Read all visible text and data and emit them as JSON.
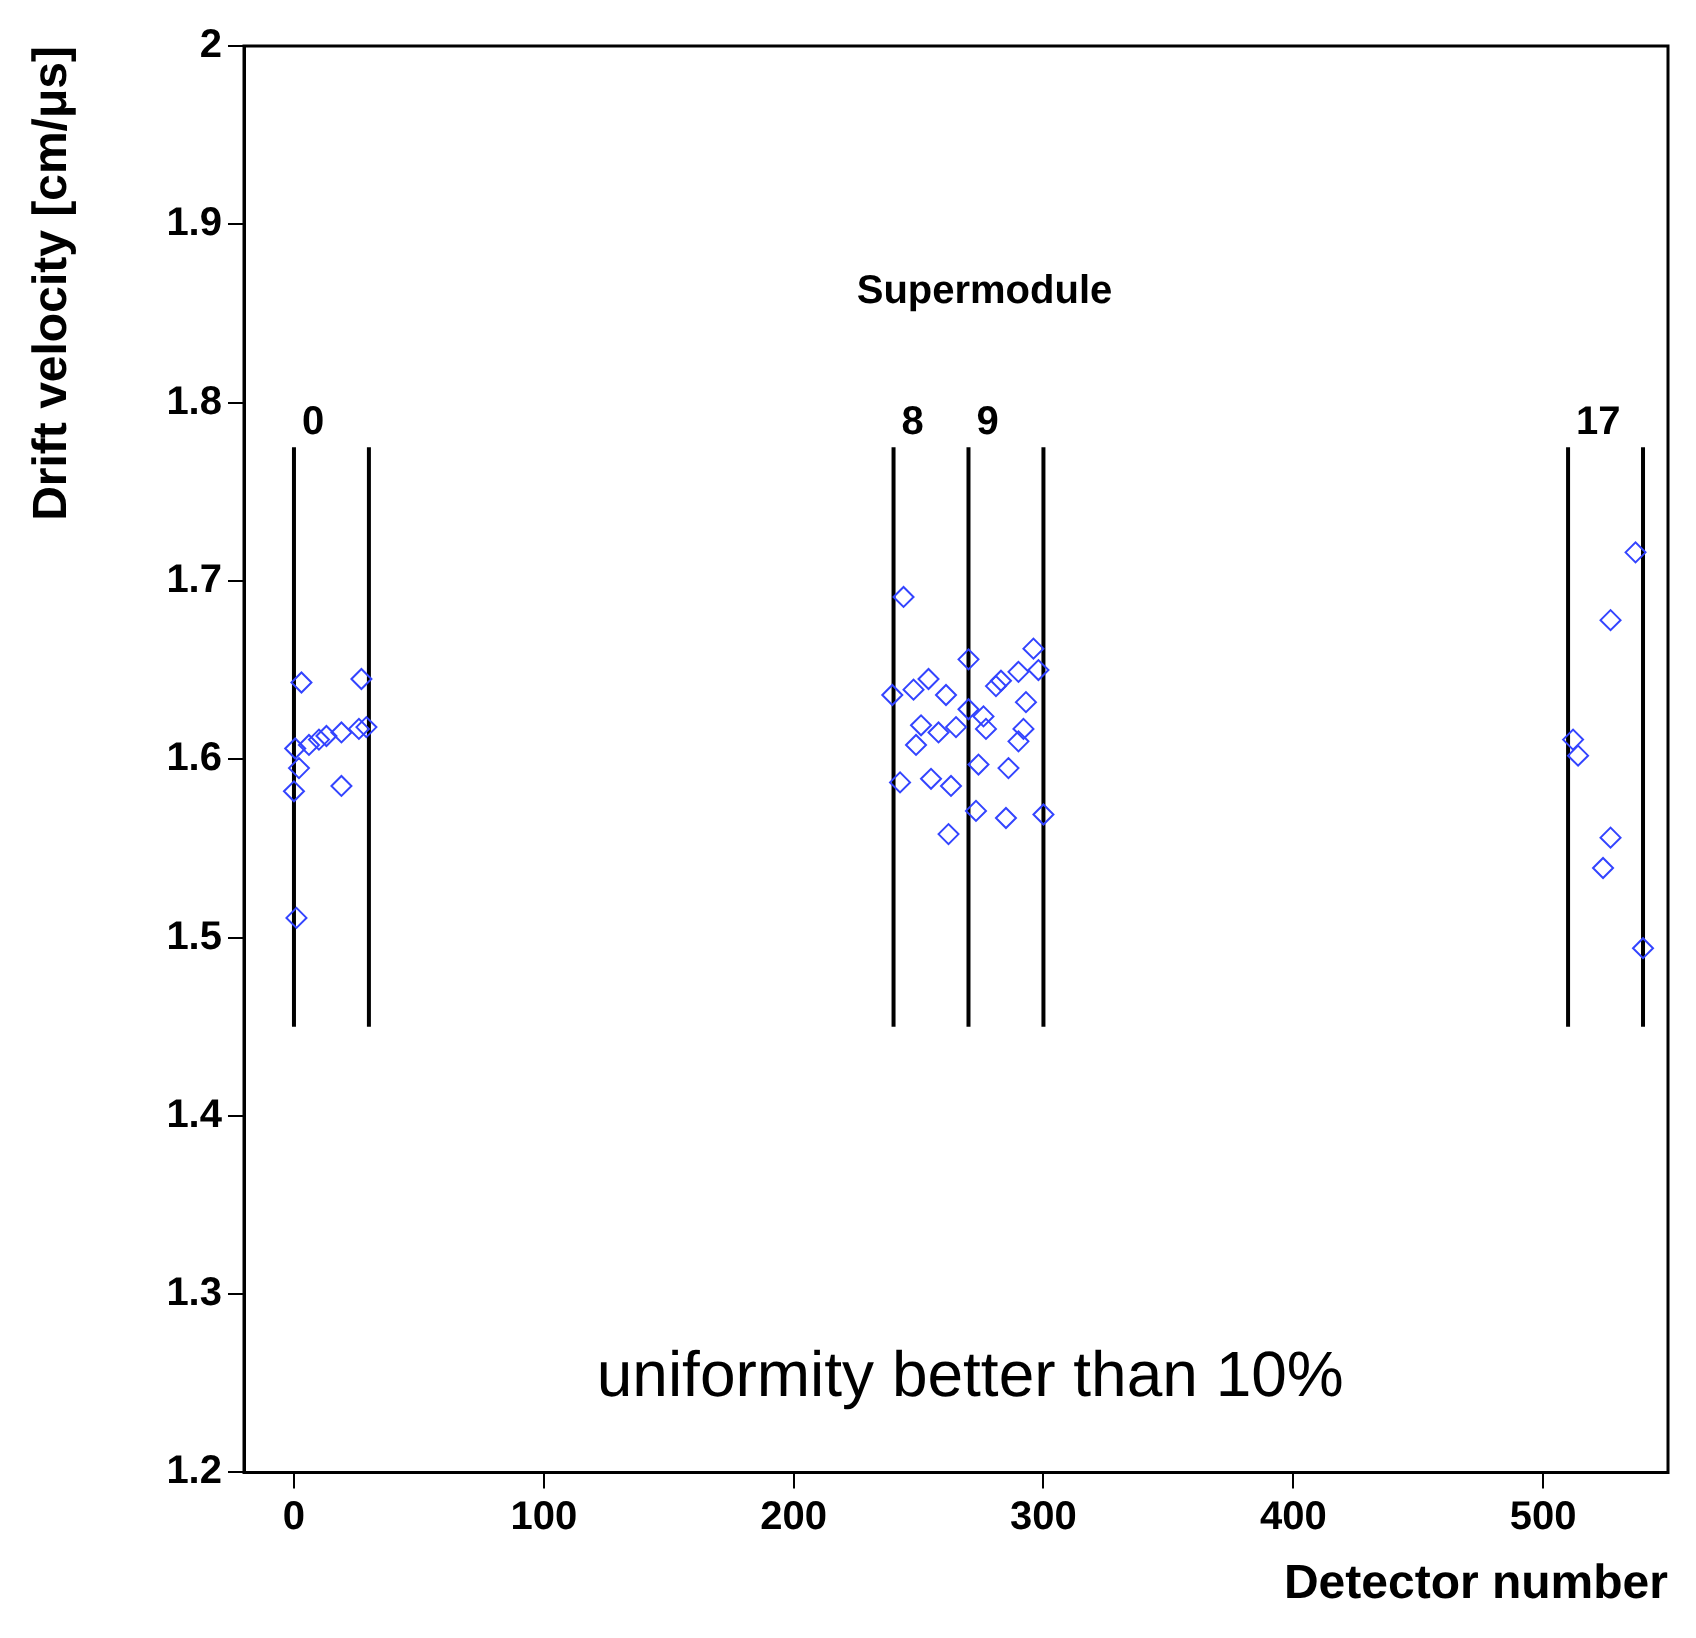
{
  "chart_data": {
    "type": "scatter",
    "xlabel": "Detector number",
    "ylabel": "Drift velocity [cm/μs]",
    "xlim": [
      -20,
      550
    ],
    "ylim": [
      1.2,
      2
    ],
    "xticks": [
      0,
      100,
      200,
      300,
      400,
      500
    ],
    "yticks": [
      1.2,
      1.3,
      1.4,
      1.5,
      1.6,
      1.7,
      1.8,
      1.9,
      2
    ],
    "grid": false,
    "legend": false,
    "series": [
      {
        "color": "#3344ff",
        "marker": "diamond",
        "x": [
          3,
          27,
          0.5,
          0,
          6,
          10,
          13,
          19,
          26,
          19,
          1,
          2,
          29,
          244,
          239.5,
          242.6,
          248,
          254,
          261,
          251,
          249,
          258,
          265,
          255,
          263,
          262,
          270,
          270,
          276,
          277,
          274,
          273,
          281,
          283,
          290,
          296,
          293,
          292,
          290,
          286,
          285,
          300,
          298,
          537,
          527,
          512,
          514,
          527,
          524,
          540
        ],
        "values": [
          1.643,
          1.645,
          1.606,
          1.582,
          1.608,
          1.611,
          1.613,
          1.615,
          1.617,
          1.585,
          1.511,
          1.595,
          1.618,
          1.691,
          1.636,
          1.587,
          1.639,
          1.645,
          1.636,
          1.619,
          1.608,
          1.615,
          1.618,
          1.589,
          1.585,
          1.558,
          1.656,
          1.628,
          1.624,
          1.617,
          1.597,
          1.571,
          1.641,
          1.644,
          1.649,
          1.662,
          1.632,
          1.617,
          1.61,
          1.595,
          1.567,
          1.569,
          1.65,
          1.716,
          1.678,
          1.611,
          1.602,
          1.556,
          1.539,
          1.494
        ]
      },
      {
        "type": "line",
        "name": "0",
        "marker": "none",
        "color": "#000000",
        "x": [
          0,
          0
        ],
        "values": [
          1.45,
          1.775
        ]
      },
      {
        "type": "line",
        "marker": "none",
        "color": "#000000",
        "x": [
          30,
          30
        ],
        "values": [
          1.45,
          1.775
        ]
      },
      {
        "type": "line",
        "name": "8",
        "marker": "none",
        "color": "#000000",
        "x": [
          240,
          240
        ],
        "values": [
          1.45,
          1.775
        ]
      },
      {
        "type": "line",
        "name": "9",
        "marker": "none",
        "color": "#000000",
        "x": [
          270,
          270
        ],
        "values": [
          1.45,
          1.775
        ]
      },
      {
        "type": "line",
        "marker": "none",
        "color": "#000000",
        "x": [
          300,
          300
        ],
        "values": [
          1.45,
          1.775
        ]
      },
      {
        "type": "line",
        "name": "17",
        "marker": "none",
        "color": "#000000",
        "x": [
          510,
          510
        ],
        "values": [
          1.45,
          1.775
        ]
      },
      {
        "type": "line",
        "marker": "none",
        "color": "#000000",
        "x": [
          540,
          540
        ],
        "values": [
          1.45,
          1.775
        ]
      }
    ],
    "annotations": [
      "Supermodule",
      "uniformity better than 10%"
    ]
  }
}
